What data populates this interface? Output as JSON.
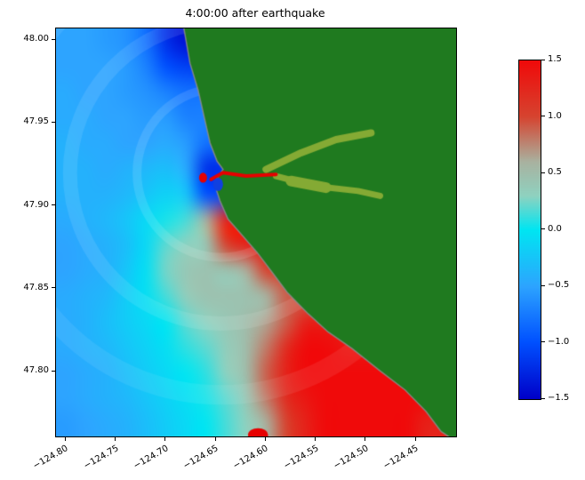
{
  "chart_data": {
    "type": "heatmap",
    "title": "4:00:00 after earthquake",
    "xlabel": "",
    "ylabel": "",
    "xlim": [
      -124.81,
      -124.41
    ],
    "ylim": [
      47.761,
      48.007
    ],
    "x_ticks": [
      {
        "label": "−124.80",
        "value": -124.8
      },
      {
        "label": "−124.75",
        "value": -124.75
      },
      {
        "label": "−124.70",
        "value": -124.7
      },
      {
        "label": "−124.65",
        "value": -124.65
      },
      {
        "label": "−124.60",
        "value": -124.6
      },
      {
        "label": "−124.55",
        "value": -124.55
      },
      {
        "label": "−124.50",
        "value": -124.5
      },
      {
        "label": "−124.45",
        "value": -124.45
      }
    ],
    "y_ticks": [
      {
        "label": "48.00",
        "value": 48.0
      },
      {
        "label": "47.95",
        "value": 47.95
      },
      {
        "label": "47.90",
        "value": 47.9
      },
      {
        "label": "47.85",
        "value": 47.85
      },
      {
        "label": "47.80",
        "value": 47.8
      }
    ],
    "colorbar": {
      "vmin": -1.5,
      "vmax": 1.5,
      "ticks": [
        {
          "label": "1.5",
          "value": 1.5
        },
        {
          "label": "1.0",
          "value": 1.0
        },
        {
          "label": "0.5",
          "value": 0.5
        },
        {
          "label": "0.0",
          "value": 0.0
        },
        {
          "label": "−0.5",
          "value": -0.5
        },
        {
          "label": "−1.0",
          "value": -1.0
        },
        {
          "label": "−1.5",
          "value": -1.5
        }
      ]
    },
    "colormap": [
      {
        "value": -1.5,
        "color": "#0000c8"
      },
      {
        "value": -1.0,
        "color": "#0050ff"
      },
      {
        "value": -0.5,
        "color": "#2da4ff"
      },
      {
        "value": 0.0,
        "color": "#00e6f2"
      },
      {
        "value": 0.3,
        "color": "#8fd2c0"
      },
      {
        "value": 0.6,
        "color": "#a9b2a0"
      },
      {
        "value": 1.0,
        "color": "#d64430"
      },
      {
        "value": 1.5,
        "color": "#f00a0a"
      }
    ],
    "land_color": "#1f7a1f",
    "river_color": "#84aa34",
    "coast_color": "#8c8c8c",
    "grid": {
      "description": "sea surface elevation (m), rows north-to-south over ylim, cols west-to-east over xlim; null = land",
      "values": [
        [
          -0.5,
          -0.5,
          -0.55,
          -0.6,
          -0.8,
          -1.2,
          -1.4,
          null,
          null,
          null,
          null,
          null,
          null,
          null,
          null,
          null,
          null,
          null,
          null,
          null
        ],
        [
          -0.5,
          -0.5,
          -0.5,
          -0.55,
          -0.7,
          -1.0,
          -1.1,
          null,
          null,
          null,
          null,
          null,
          null,
          null,
          null,
          null,
          null,
          null,
          null,
          null
        ],
        [
          -0.45,
          -0.5,
          -0.5,
          -0.55,
          -0.6,
          -0.7,
          -0.8,
          null,
          null,
          null,
          null,
          null,
          null,
          null,
          null,
          null,
          null,
          null,
          null,
          null
        ],
        [
          -0.45,
          -0.45,
          -0.5,
          -0.5,
          -0.55,
          -0.55,
          -0.7,
          null,
          null,
          null,
          null,
          null,
          null,
          null,
          null,
          null,
          null,
          null,
          null,
          null
        ],
        [
          -0.4,
          -0.45,
          -0.45,
          -0.5,
          -0.5,
          -0.45,
          -0.55,
          -0.8,
          null,
          null,
          null,
          null,
          null,
          null,
          null,
          null,
          null,
          null,
          null,
          null
        ],
        [
          -0.4,
          -0.4,
          -0.45,
          -0.4,
          -0.35,
          -0.3,
          -0.45,
          -1.2,
          null,
          null,
          null,
          null,
          null,
          null,
          null,
          null,
          null,
          null,
          null,
          null
        ],
        [
          -0.4,
          -0.4,
          -0.4,
          -0.35,
          -0.25,
          -0.15,
          -0.25,
          -1.0,
          null,
          null,
          null,
          null,
          null,
          null,
          null,
          null,
          null,
          null,
          null,
          null
        ],
        [
          -0.45,
          -0.4,
          -0.35,
          -0.25,
          -0.1,
          0.05,
          0.15,
          0.6,
          1.3,
          null,
          null,
          null,
          null,
          null,
          null,
          null,
          null,
          null,
          null,
          null
        ],
        [
          -0.5,
          -0.45,
          -0.4,
          -0.3,
          -0.1,
          0.2,
          0.3,
          0.4,
          1.0,
          1.3,
          null,
          null,
          null,
          null,
          null,
          null,
          null,
          null,
          null,
          null
        ],
        [
          -0.5,
          -0.45,
          -0.4,
          -0.25,
          -0.05,
          0.25,
          0.4,
          0.45,
          0.4,
          0.6,
          1.0,
          null,
          null,
          null,
          null,
          null,
          null,
          null,
          null,
          null
        ],
        [
          -0.45,
          -0.4,
          -0.35,
          -0.2,
          -0.05,
          0.15,
          0.35,
          0.45,
          0.45,
          0.45,
          0.55,
          0.9,
          null,
          null,
          null,
          null,
          null,
          null,
          null,
          null
        ],
        [
          -0.45,
          -0.4,
          -0.3,
          -0.2,
          -0.1,
          0.0,
          0.2,
          0.3,
          0.4,
          0.5,
          0.65,
          0.9,
          1.3,
          null,
          null,
          null,
          null,
          null,
          null,
          null
        ],
        [
          -0.45,
          -0.4,
          -0.35,
          -0.25,
          -0.15,
          -0.05,
          0.1,
          0.2,
          0.35,
          0.5,
          0.8,
          1.2,
          1.5,
          1.5,
          1.4,
          null,
          null,
          null,
          null,
          null
        ],
        [
          -0.5,
          -0.45,
          -0.4,
          -0.3,
          -0.2,
          -0.1,
          0.0,
          0.1,
          0.3,
          0.5,
          0.9,
          1.3,
          1.5,
          1.5,
          1.5,
          1.5,
          null,
          null,
          null,
          null
        ],
        [
          -0.5,
          -0.45,
          -0.4,
          -0.35,
          -0.25,
          -0.15,
          -0.05,
          0.05,
          0.2,
          0.4,
          0.8,
          1.2,
          1.4,
          1.5,
          1.5,
          1.5,
          1.5,
          null,
          null,
          null
        ],
        [
          -0.55,
          -0.5,
          -0.45,
          -0.4,
          -0.3,
          -0.2,
          -0.1,
          0.0,
          0.15,
          0.3,
          0.6,
          1.0,
          1.3,
          1.5,
          1.5,
          1.5,
          1.5,
          1.5,
          1.3,
          null
        ]
      ]
    },
    "coastline": [
      [
        -124.683,
        48.01
      ],
      [
        -124.676,
        47.986
      ],
      [
        -124.668,
        47.97
      ],
      [
        -124.662,
        47.954
      ],
      [
        -124.656,
        47.938
      ],
      [
        -124.649,
        47.927
      ],
      [
        -124.643,
        47.922
      ],
      [
        -124.652,
        47.914
      ],
      [
        -124.646,
        47.903
      ],
      [
        -124.638,
        47.892
      ],
      [
        -124.625,
        47.883
      ],
      [
        -124.609,
        47.872
      ],
      [
        -124.594,
        47.86
      ],
      [
        -124.579,
        47.848
      ],
      [
        -124.558,
        47.835
      ],
      [
        -124.538,
        47.824
      ],
      [
        -124.514,
        47.814
      ],
      [
        -124.487,
        47.801
      ],
      [
        -124.461,
        47.789
      ],
      [
        -124.44,
        47.776
      ],
      [
        -124.425,
        47.764
      ],
      [
        -124.41,
        47.758
      ]
    ],
    "land_closure": [
      [
        -124.405,
        47.758
      ],
      [
        -124.405,
        48.01
      ]
    ],
    "rivers": [
      {
        "width": 8,
        "points": [
          [
            -124.6,
            47.922
          ],
          [
            -124.565,
            47.932
          ],
          [
            -124.53,
            47.94
          ],
          [
            -124.495,
            47.944
          ]
        ]
      },
      {
        "width": 7,
        "points": [
          [
            -124.59,
            47.918
          ],
          [
            -124.552,
            47.912
          ],
          [
            -124.508,
            47.909
          ],
          [
            -124.486,
            47.906
          ]
        ]
      },
      {
        "width": 12,
        "points": [
          [
            -124.575,
            47.915
          ],
          [
            -124.54,
            47.911
          ]
        ]
      }
    ],
    "channels": [
      {
        "color": "#e60000",
        "width": 4,
        "points": [
          [
            -124.655,
            47.916
          ],
          [
            -124.643,
            47.92
          ],
          [
            -124.62,
            47.918
          ],
          [
            -124.59,
            47.919
          ]
        ]
      }
    ],
    "spots": [
      {
        "lon": -124.648,
        "lat": 47.913,
        "rx": 0.005,
        "ry": 0.004,
        "color": "#1040e0"
      },
      {
        "lon": -124.663,
        "lat": 47.917,
        "rx": 0.004,
        "ry": 0.003,
        "color": "#e60000"
      },
      {
        "lon": -124.608,
        "lat": 47.762,
        "rx": 0.01,
        "ry": 0.004,
        "color": "#e60000"
      },
      {
        "lon": -124.416,
        "lat": 47.757,
        "rx": 0.006,
        "ry": 0.004,
        "color": "#e60000"
      }
    ],
    "wavefronts": [
      {
        "lon": -124.645,
        "lat": 47.92,
        "rx": 0.084,
        "ry": 0.051,
        "width": 10,
        "alpha": 0.12
      },
      {
        "lon": -124.645,
        "lat": 47.92,
        "rx": 0.151,
        "ry": 0.091,
        "width": 16,
        "alpha": 0.1
      },
      {
        "lon": -124.645,
        "lat": 47.92,
        "rx": 0.222,
        "ry": 0.134,
        "width": 22,
        "alpha": 0.08
      }
    ]
  }
}
